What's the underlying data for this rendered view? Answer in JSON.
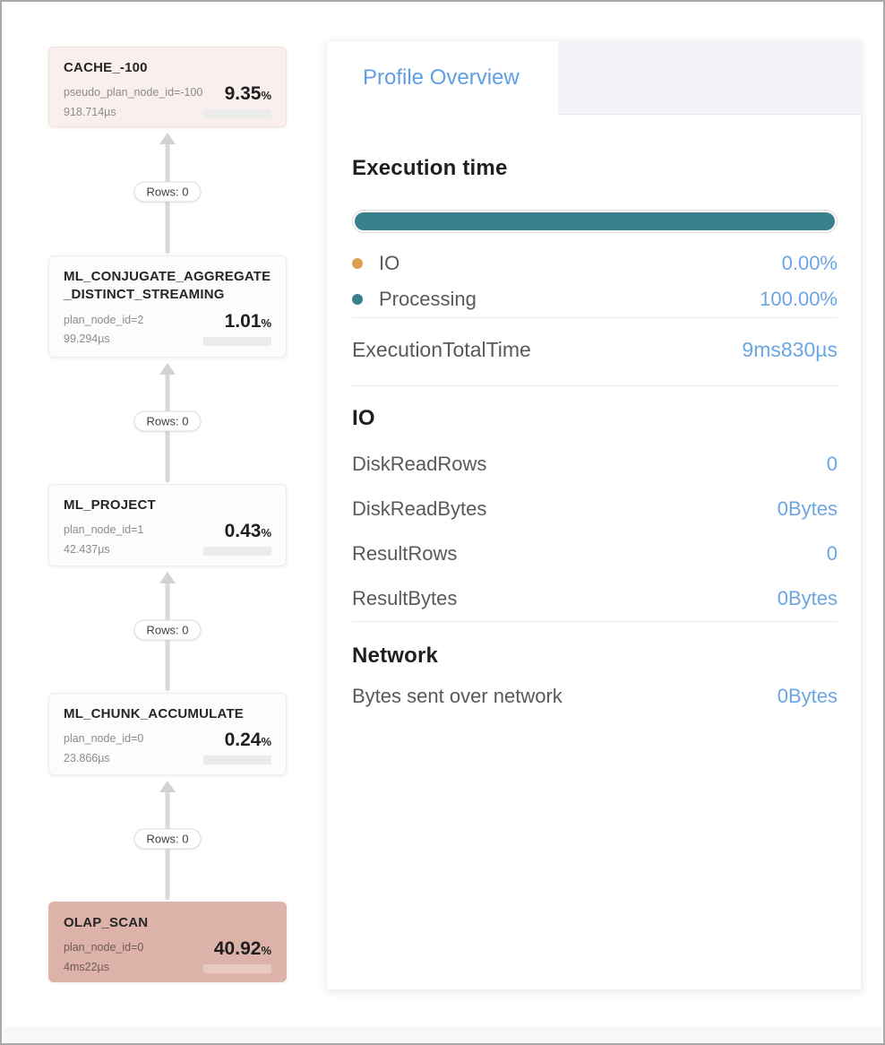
{
  "units": {
    "percent": "%"
  },
  "colors": {
    "teal": "#38808C",
    "orange": "#DCA050",
    "value_blue": "#6CA6E2",
    "scan_bg": "#DCB2A9",
    "cache_bg": "#F9EFED"
  },
  "flow": {
    "edge_label": "Rows: 0",
    "nodes": [
      {
        "title": "CACHE_-100",
        "meta": "pseudo_plan_node_id=-100",
        "time": "918.714µs",
        "percent": "9.35"
      },
      {
        "title": "ML_CONJUGATE_AGGREGATE_DISTINCT_STREAMING",
        "meta": "plan_node_id=2",
        "time": "99.294µs",
        "percent": "1.01"
      },
      {
        "title": "ML_PROJECT",
        "meta": "plan_node_id=1",
        "time": "42.437µs",
        "percent": "0.43"
      },
      {
        "title": "ML_CHUNK_ACCUMULATE",
        "meta": "plan_node_id=0",
        "time": "23.866µs",
        "percent": "0.24"
      },
      {
        "title": "OLAP_SCAN",
        "meta": "plan_node_id=0",
        "time": "4ms22µs",
        "percent": "40.92"
      }
    ]
  },
  "panel": {
    "tab": "Profile Overview",
    "execution": {
      "heading": "Execution time",
      "bar": {
        "io": 0,
        "processing": 100
      },
      "legend": [
        {
          "label": "IO",
          "value": "0.00%"
        },
        {
          "label": "Processing",
          "value": "100.00%"
        }
      ],
      "total": {
        "label": "ExecutionTotalTime",
        "value": "9ms830µs"
      }
    },
    "io": {
      "heading": "IO",
      "rows": [
        {
          "label": "DiskReadRows",
          "value": "0"
        },
        {
          "label": "DiskReadBytes",
          "value": "0Bytes"
        },
        {
          "label": "ResultRows",
          "value": "0"
        },
        {
          "label": "ResultBytes",
          "value": "0Bytes"
        }
      ]
    },
    "network": {
      "heading": "Network",
      "rows": [
        {
          "label": "Bytes sent over network",
          "value": "0Bytes"
        }
      ]
    }
  }
}
